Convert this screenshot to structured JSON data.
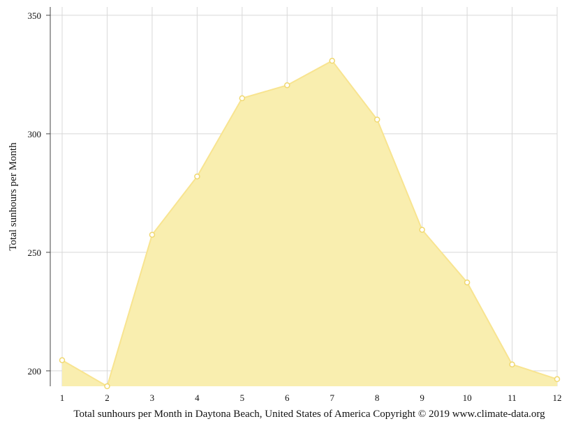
{
  "chart_data": {
    "type": "area",
    "title": "",
    "caption": "Total sunhours per Month in Daytona Beach, United States of America Copyright © 2019 www.climate-data.org",
    "xlabel": "",
    "ylabel": "Total sunhours per Month",
    "x": [
      1,
      2,
      3,
      4,
      5,
      6,
      7,
      8,
      9,
      10,
      11,
      12
    ],
    "values": [
      204.5,
      193.5,
      257.4,
      282.0,
      315.0,
      320.5,
      330.8,
      306.0,
      259.5,
      237.3,
      202.7,
      196.5
    ],
    "xlim": [
      1,
      12
    ],
    "ylim": [
      193.5,
      353.5
    ],
    "yticks": [
      200,
      250,
      300,
      350
    ],
    "grid": true,
    "legend": "none",
    "colors": {
      "area_fill": "#f9eeaf",
      "area_line": "#f8e490",
      "marker_fill": "#ffffff",
      "marker_stroke": "#f0d870",
      "grid": "#d8d8d8",
      "axis": "#444444"
    }
  }
}
